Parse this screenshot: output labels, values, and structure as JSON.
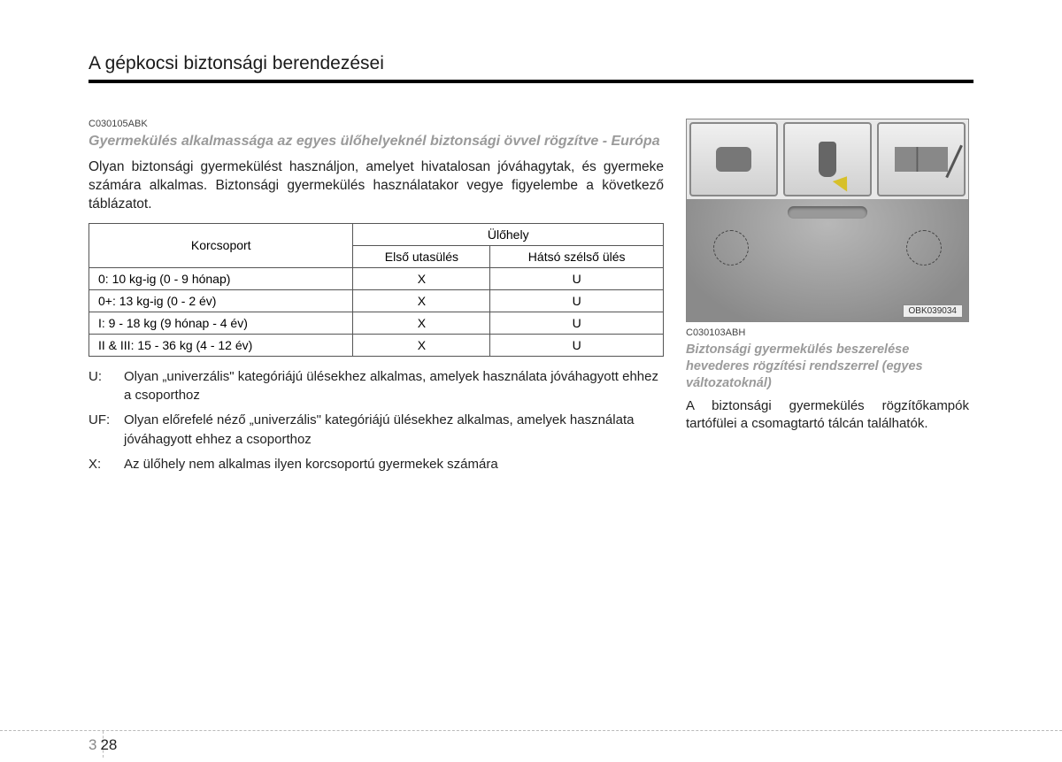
{
  "header": {
    "title": "A gépkocsi biztonsági berendezései"
  },
  "left": {
    "code": "C030105ABK",
    "section_title": "Gyermekülés alkalmassága az egyes ülőhelyeknél biztonsági övvel rögzítve - Európa",
    "intro": "Olyan biztonsági gyermekülést használjon, amelyet hivatalosan jóváhagytak, és gyermeke számára alkalmas. Biztonsági gyermekülés használatakor vegye figyelembe a következő táblázatot."
  },
  "table": {
    "col_group": "Korcsoport",
    "col_seat": "Ülőhely",
    "col_front": "Első utasülés",
    "col_rear": "Hátsó szélső ülés",
    "rows": [
      {
        "group": "0: 10 kg-ig (0 - 9 hónap)",
        "front": "X",
        "rear": "U"
      },
      {
        "group": "0+: 13 kg-ig (0 - 2 év)",
        "front": "X",
        "rear": "U"
      },
      {
        "group": "I: 9 - 18 kg (9 hónap - 4 év)",
        "front": "X",
        "rear": "U"
      },
      {
        "group": "II & III: 15 - 36 kg (4 - 12 év)",
        "front": "X",
        "rear": "U"
      }
    ]
  },
  "legend": {
    "u_key": "U:",
    "u_text": "Olyan „univerzális\" kategóriájú ülésekhez alkalmas, amelyek használata jóváhagyott ehhez a csoporthoz",
    "uf_key": "UF:",
    "uf_text": "Olyan előrefelé néző „univerzális\" kategóriájú ülésekhez alkalmas, amelyek használata jóváhagyott ehhez a csoporthoz",
    "x_key": "X:",
    "x_text": "Az ülőhely nem alkalmas ilyen korcsoportú gyermekek számára"
  },
  "right": {
    "fig_label": "OBK039034",
    "code": "C030103ABH",
    "section_title": "Biztonsági gyermekülés beszerelése hevederes rögzítési rendszerrel (egyes változatoknál)",
    "body": "A biztonsági gyermekülés rögzítőkampók tartófülei a csomagtartó tálcán találhatók."
  },
  "footer": {
    "chapter": "3",
    "page": "28"
  }
}
